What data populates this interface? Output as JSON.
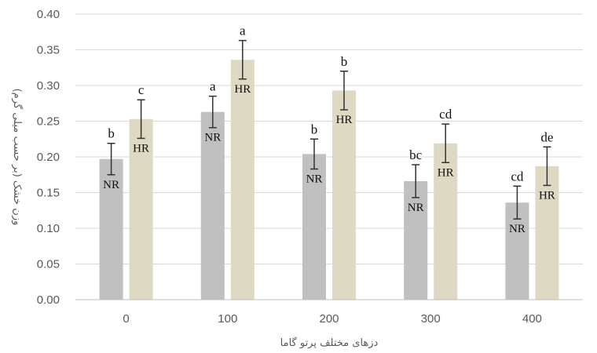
{
  "chart_data": {
    "type": "bar",
    "title": "",
    "xlabel": "دزهای مختلف پرتو گاما",
    "ylabel": "وزن خشک (بر حسب میلی گرم)",
    "categories": [
      "0",
      "100",
      "200",
      "300",
      "400"
    ],
    "ylim": [
      0,
      0.4
    ],
    "yticks": [
      "0.00",
      "0.05",
      "0.10",
      "0.15",
      "0.20",
      "0.25",
      "0.30",
      "0.35",
      "0.40"
    ],
    "grid": true,
    "legend": "none",
    "series": [
      {
        "name": "NR",
        "color": "#c0c0c0",
        "values": [
          0.197,
          0.263,
          0.204,
          0.166,
          0.136
        ],
        "errors": [
          0.022,
          0.022,
          0.021,
          0.023,
          0.023
        ],
        "bar_labels": [
          "NR",
          "NR",
          "NR",
          "NR",
          "NR"
        ],
        "significance": [
          "b",
          "a",
          "b",
          "bc",
          "cd"
        ]
      },
      {
        "name": "HR",
        "color": "#ddd9c3",
        "values": [
          0.253,
          0.336,
          0.293,
          0.219,
          0.187
        ],
        "errors": [
          0.027,
          0.027,
          0.027,
          0.027,
          0.027
        ],
        "bar_labels": [
          "HR",
          "HR",
          "HR",
          "HR",
          "HR"
        ],
        "significance": [
          "c",
          "a",
          "b",
          "cd",
          "de"
        ]
      }
    ]
  }
}
